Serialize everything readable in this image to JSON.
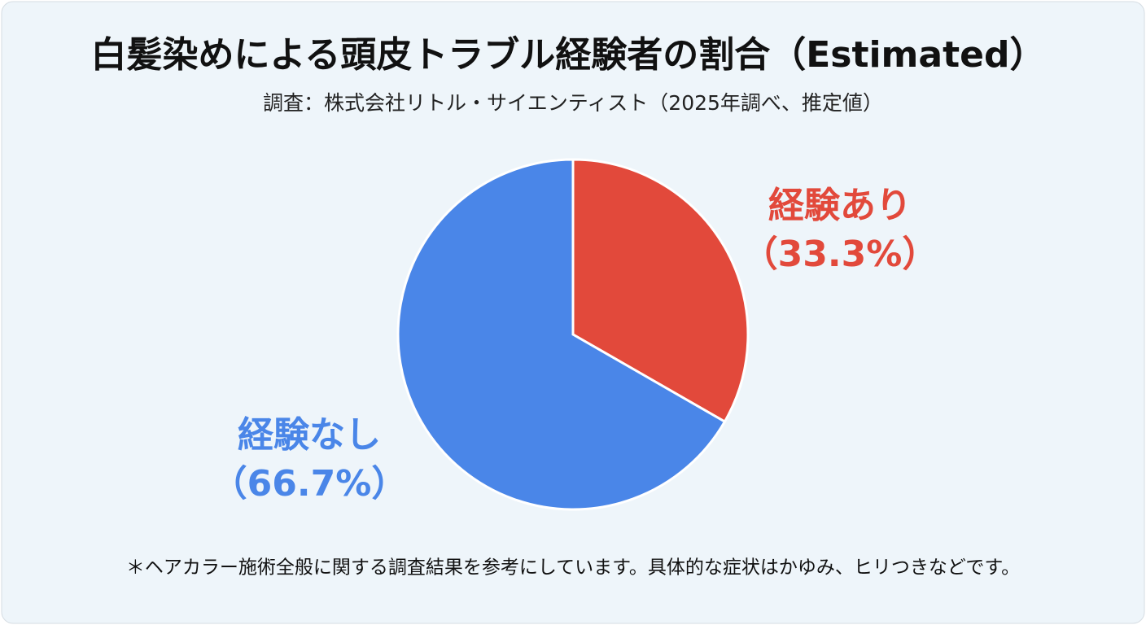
{
  "chart_data": {
    "type": "pie",
    "title": "白髪染めによる頭皮トラブル経験者の割合（Estimated）",
    "subtitle": "調査：株式会社リトル・サイエンティスト（2025年調べ、推定値）",
    "categories": [
      "経験あり",
      "経験なし"
    ],
    "values": [
      33.3,
      66.7
    ],
    "value_labels": [
      "（33.3%）",
      "（66.7%）"
    ],
    "colors": [
      "#e2493b",
      "#4a86e8"
    ],
    "footnote": "＊ヘアカラー施術全般に関する調査結果を参考にしています。具体的な症状はかゆみ、ヒリつきなどです。"
  }
}
